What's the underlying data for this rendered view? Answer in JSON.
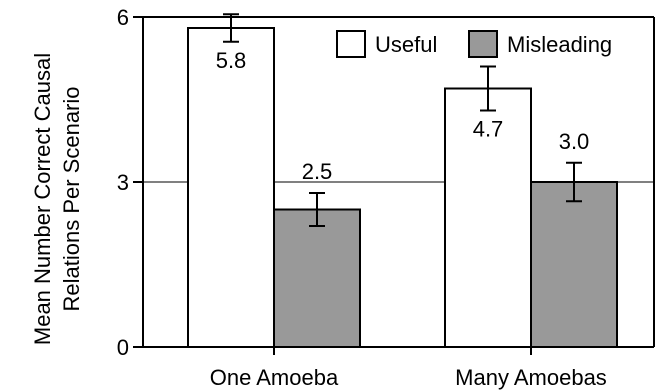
{
  "chart_data": {
    "type": "bar",
    "categories": [
      "One Amoeba",
      "Many Amoebas"
    ],
    "series": [
      {
        "name": "Useful",
        "values": [
          5.8,
          4.7
        ],
        "error": [
          0.25,
          0.4
        ],
        "color": "#ffffff",
        "labels": [
          "5.8",
          "4.7"
        ]
      },
      {
        "name": "Misleading",
        "values": [
          2.5,
          3.0
        ],
        "error": [
          0.3,
          0.35
        ],
        "color": "#999999",
        "labels": [
          "2.5",
          "3.0"
        ]
      }
    ],
    "title": "",
    "xlabel": "",
    "ylabel_lines": [
      "Mean Number Correct Causal",
      "Relations Per Scenario"
    ],
    "ylim": [
      0,
      6
    ],
    "yticks": [
      0,
      3,
      6
    ],
    "ytick_labels": [
      "0",
      "3",
      "6"
    ],
    "gridlines": [
      3
    ],
    "legend_position": "top-right",
    "error_bars": true
  }
}
